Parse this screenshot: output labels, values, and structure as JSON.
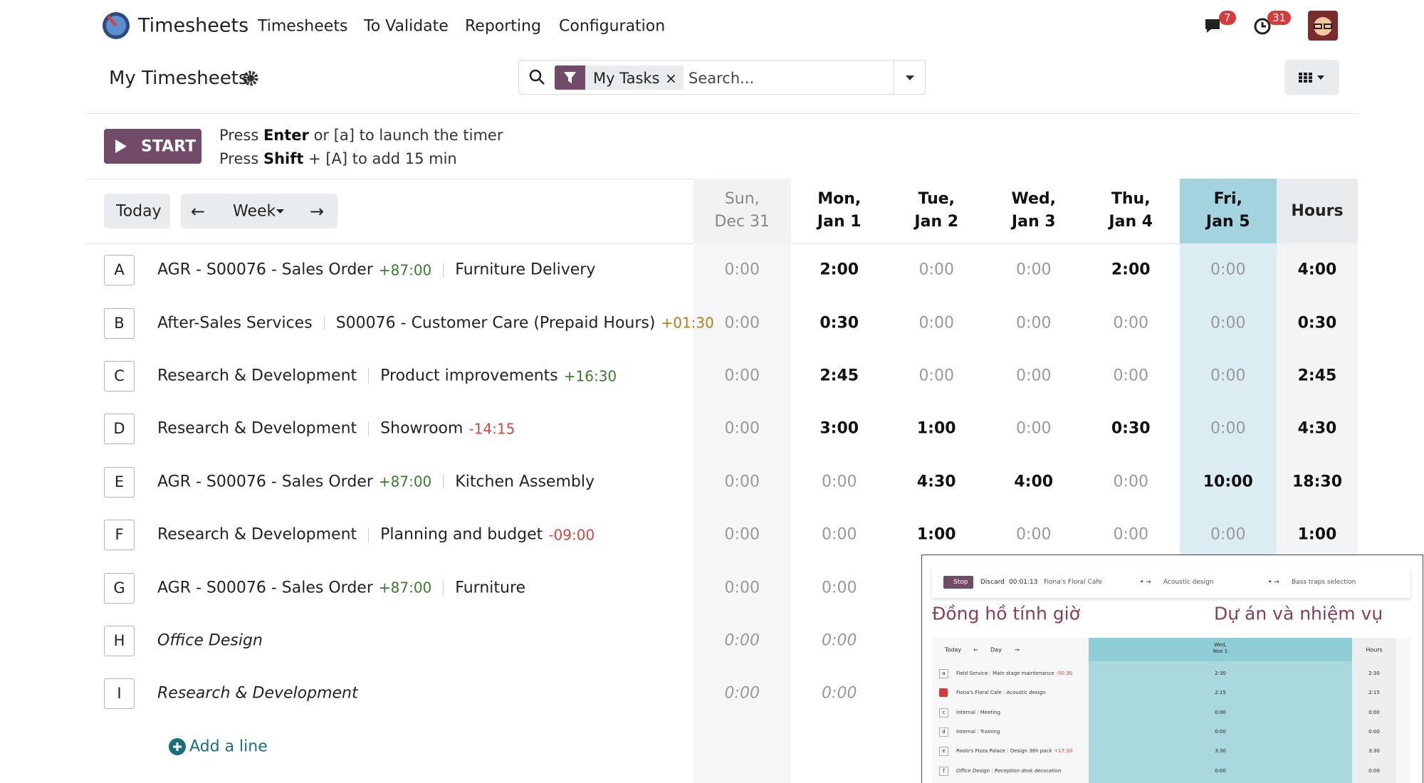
{
  "app": {
    "name": "Timesheets",
    "menu": [
      "Timesheets",
      "To Validate",
      "Reporting",
      "Configuration"
    ],
    "badges": {
      "messages": "7",
      "activities": "31"
    }
  },
  "control": {
    "title": "My Timesheets",
    "filter": "My Tasks",
    "search_placeholder": "Search..."
  },
  "timer": {
    "button": "START",
    "hints": [
      [
        "Press ",
        "Enter",
        " or [a] to launch the timer"
      ],
      [
        "Press ",
        "Shift",
        " + [A] to add 15 min"
      ]
    ]
  },
  "grid": {
    "today": "Today",
    "period": "Week",
    "hours_header": "Hours",
    "add_line": "Add a line",
    "columns": [
      {
        "day": "Sun,",
        "date": "Dec 31",
        "weekend": true
      },
      {
        "day": "Mon,",
        "date": "Jan 1"
      },
      {
        "day": "Tue,",
        "date": "Jan 2"
      },
      {
        "day": "Wed,",
        "date": "Jan 3"
      },
      {
        "day": "Thu,",
        "date": "Jan 4"
      },
      {
        "day": "Fri,",
        "date": "Jan 5",
        "highlight": true
      }
    ],
    "rows": [
      {
        "key": "A",
        "project": "AGR - S00076 - Sales Order",
        "project_delta": "+87:00",
        "project_delta_color": "#3d7a2e",
        "task": "Furniture Delivery",
        "cells": [
          "0:00",
          "2:00",
          "0:00",
          "0:00",
          "2:00",
          "0:00"
        ],
        "total": "4:00"
      },
      {
        "key": "B",
        "project": "After-Sales Services",
        "task": "S00076 - Customer Care (Prepaid Hours)",
        "task_delta": "+01:30",
        "task_delta_color": "#c27c0e",
        "cells": [
          "0:00",
          "0:30",
          "0:00",
          "0:00",
          "0:00",
          "0:00"
        ],
        "total": "0:30"
      },
      {
        "key": "C",
        "project": "Research & Development",
        "task": "Product improvements",
        "task_delta": "+16:30",
        "task_delta_color": "#3d7a2e",
        "cells": [
          "0:00",
          "2:45",
          "0:00",
          "0:00",
          "0:00",
          "0:00"
        ],
        "total": "2:45"
      },
      {
        "key": "D",
        "project": "Research & Development",
        "task": "Showroom",
        "task_delta": "-14:15",
        "task_delta_color": "#d9453d",
        "cells": [
          "0:00",
          "3:00",
          "1:00",
          "0:00",
          "0:30",
          "0:00"
        ],
        "total": "4:30"
      },
      {
        "key": "E",
        "project": "AGR - S00076 - Sales Order",
        "project_delta": "+87:00",
        "project_delta_color": "#3d7a2e",
        "task": "Kitchen Assembly",
        "cells": [
          "0:00",
          "0:00",
          "4:30",
          "4:00",
          "0:00",
          "10:00"
        ],
        "total": "18:30"
      },
      {
        "key": "F",
        "project": "Research & Development",
        "task": "Planning and budget",
        "task_delta": "-09:00",
        "task_delta_color": "#d9453d",
        "cells": [
          "0:00",
          "0:00",
          "1:00",
          "0:00",
          "0:00",
          "0:00"
        ],
        "total": "1:00"
      },
      {
        "key": "G",
        "project": "AGR - S00076 - Sales Order",
        "project_delta": "+87:00",
        "project_delta_color": "#3d7a2e",
        "task": "Furniture",
        "cells": [
          "0:00",
          "0:00"
        ]
      },
      {
        "key": "H",
        "project": "Office Design",
        "italic": true,
        "cells": [
          "0:00",
          "0:00"
        ]
      },
      {
        "key": "I",
        "project": "Research & Development",
        "italic": true,
        "cells": [
          "0:00",
          "0:00"
        ]
      }
    ]
  },
  "inset": {
    "timer": {
      "stop": "Stop",
      "discard": "Discard",
      "elapsed": "00:01:13",
      "project": "Fiona's Floral Cafe",
      "task": "Acoustic design",
      "next_task": "Bass traps selection"
    },
    "labels": [
      "Đồng hồ tính giờ",
      "Dự án và nhiệm vụ"
    ],
    "nav": {
      "today": "Today",
      "period": "Day"
    },
    "column": {
      "day": "Wed,",
      "date": "Nov 1"
    },
    "hours_header": "Hours",
    "rows": [
      {
        "key": "a",
        "project": "Field Service",
        "task": "Main stage maintenance",
        "task_delta": "-00:30",
        "value": "2:30",
        "total": "2:30"
      },
      {
        "running": true,
        "project": "Fiona's Floral Cafe",
        "task": "Acoustic design",
        "value": "2:15",
        "total": "2:15"
      },
      {
        "key": "c",
        "project": "Internal",
        "task": "Meeting",
        "value": "0:00",
        "total": "0:00"
      },
      {
        "key": "d",
        "project": "Internal",
        "task": "Training",
        "value": "0:00",
        "total": "0:00"
      },
      {
        "key": "e",
        "project": "Paolo's Pizza Palace",
        "task": "Design 36h pack",
        "task_delta": "+17:30",
        "value": "3:30",
        "total": "3:30"
      },
      {
        "key": "f",
        "project": "Office Design",
        "task": "Reception desk decoration",
        "italic": true,
        "value": "0:00",
        "total": "0:00"
      }
    ]
  }
}
